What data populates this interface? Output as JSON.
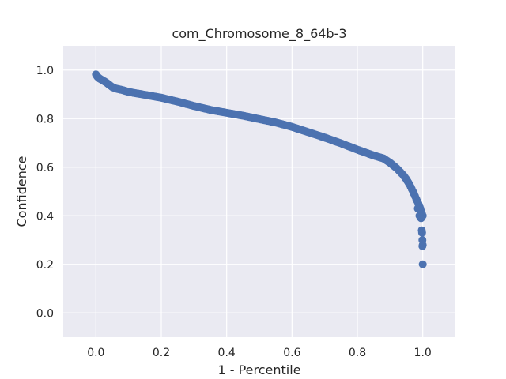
{
  "chart_data": {
    "type": "scatter",
    "title": "com_Chromosome_8_64b-3",
    "xlabel": "1 - Percentile",
    "ylabel": "Confidence",
    "xlim": [
      -0.1,
      1.1
    ],
    "ylim": [
      -0.1,
      1.1
    ],
    "x_ticks": [
      0.0,
      0.2,
      0.4,
      0.6,
      0.8,
      1.0
    ],
    "x_tick_labels": [
      "0.0",
      "0.2",
      "0.4",
      "0.6",
      "0.8",
      "1.0"
    ],
    "y_ticks": [
      0.0,
      0.2,
      0.4,
      0.6,
      0.8,
      1.0
    ],
    "y_tick_labels": [
      "0.0",
      "0.2",
      "0.4",
      "0.6",
      "0.8",
      "1.0"
    ],
    "grid": true,
    "point_color": "#4c72b0",
    "background_color": "#eaeaf2",
    "curve": [
      [
        0.0,
        0.982
      ],
      [
        0.005,
        0.972
      ],
      [
        0.01,
        0.966
      ],
      [
        0.02,
        0.958
      ],
      [
        0.03,
        0.95
      ],
      [
        0.04,
        0.94
      ],
      [
        0.05,
        0.93
      ],
      [
        0.06,
        0.924
      ],
      [
        0.08,
        0.918
      ],
      [
        0.1,
        0.91
      ],
      [
        0.12,
        0.905
      ],
      [
        0.15,
        0.898
      ],
      [
        0.2,
        0.886
      ],
      [
        0.25,
        0.87
      ],
      [
        0.3,
        0.852
      ],
      [
        0.35,
        0.836
      ],
      [
        0.4,
        0.824
      ],
      [
        0.45,
        0.812
      ],
      [
        0.5,
        0.798
      ],
      [
        0.55,
        0.784
      ],
      [
        0.6,
        0.766
      ],
      [
        0.65,
        0.744
      ],
      [
        0.7,
        0.722
      ],
      [
        0.75,
        0.698
      ],
      [
        0.8,
        0.672
      ],
      [
        0.85,
        0.648
      ],
      [
        0.88,
        0.636
      ],
      [
        0.9,
        0.618
      ],
      [
        0.92,
        0.596
      ],
      [
        0.94,
        0.568
      ],
      [
        0.95,
        0.55
      ],
      [
        0.96,
        0.528
      ],
      [
        0.97,
        0.5
      ],
      [
        0.98,
        0.47
      ],
      [
        0.99,
        0.44
      ],
      [
        0.995,
        0.42
      ],
      [
        1.0,
        0.4
      ]
    ],
    "tail_points": [
      {
        "x": 0.985,
        "y": 0.43
      },
      {
        "x": 0.99,
        "y": 0.4
      },
      {
        "x": 0.995,
        "y": 0.39
      },
      {
        "x": 0.997,
        "y": 0.34
      },
      {
        "x": 0.998,
        "y": 0.33
      },
      {
        "x": 0.999,
        "y": 0.3
      },
      {
        "x": 0.999,
        "y": 0.275
      },
      {
        "x": 1.0,
        "y": 0.28
      },
      {
        "x": 1.0,
        "y": 0.2
      }
    ]
  }
}
